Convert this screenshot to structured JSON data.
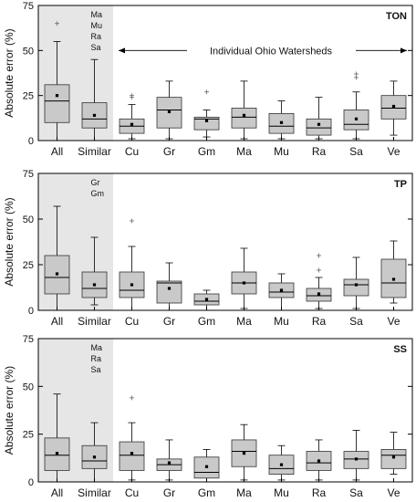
{
  "chart_data": [
    {
      "type": "box",
      "tag": "TON",
      "ylabel": "Absolute error (%)",
      "ylim": [
        0,
        75
      ],
      "yticks": [
        0,
        25,
        50,
        75
      ],
      "shaded_categories": [
        "All",
        "Similar"
      ],
      "similar_members": [
        "Ma",
        "Mu",
        "Ra",
        "Sa"
      ],
      "annotation": "Individual Ohio Watersheds",
      "categories": [
        "All",
        "Similar",
        "Cu",
        "Gr",
        "Gm",
        "Ma",
        "Mu",
        "Ra",
        "Sa",
        "Ve"
      ],
      "boxes": [
        {
          "min": 0,
          "q1": 10,
          "median": 22,
          "q3": 31,
          "max": 55,
          "mean": 25,
          "outliers": [
            65
          ]
        },
        {
          "min": 0,
          "q1": 7,
          "median": 12,
          "q3": 21,
          "max": 45,
          "mean": 14,
          "outliers": []
        },
        {
          "min": 1,
          "q1": 4,
          "median": 8,
          "q3": 12,
          "max": 20,
          "mean": 9,
          "outliers": [
            24,
            25
          ]
        },
        {
          "min": 1,
          "q1": 7,
          "median": 17,
          "q3": 24,
          "max": 33,
          "mean": 16,
          "outliers": []
        },
        {
          "min": 2,
          "q1": 6,
          "median": 12,
          "q3": 13,
          "max": 17,
          "mean": 11,
          "outliers": [
            27
          ]
        },
        {
          "min": 1,
          "q1": 7,
          "median": 13,
          "q3": 18,
          "max": 33,
          "mean": 14,
          "outliers": []
        },
        {
          "min": 1,
          "q1": 4,
          "median": 8,
          "q3": 15,
          "max": 22,
          "mean": 10,
          "outliers": []
        },
        {
          "min": 1,
          "q1": 3,
          "median": 7,
          "q3": 12,
          "max": 24,
          "mean": 9,
          "outliers": []
        },
        {
          "min": 1,
          "q1": 6,
          "median": 9,
          "q3": 17,
          "max": 27,
          "mean": 12,
          "outliers": [
            35,
            37
          ]
        },
        {
          "min": 3,
          "q1": 12,
          "median": 18,
          "q3": 25,
          "max": 33,
          "mean": 19,
          "outliers": []
        }
      ]
    },
    {
      "type": "box",
      "tag": "TP",
      "ylabel": "Absolute error (%)",
      "ylim": [
        0,
        75
      ],
      "yticks": [
        0,
        25,
        50,
        75
      ],
      "shaded_categories": [
        "All",
        "Similar"
      ],
      "similar_members": [
        "Gr",
        "Gm"
      ],
      "annotation": "",
      "categories": [
        "All",
        "Similar",
        "Cu",
        "Gr",
        "Gm",
        "Ma",
        "Mu",
        "Ra",
        "Sa",
        "Ve"
      ],
      "boxes": [
        {
          "min": 0,
          "q1": 9,
          "median": 18,
          "q3": 30,
          "max": 57,
          "mean": 20,
          "outliers": []
        },
        {
          "min": 3,
          "q1": 7,
          "median": 12,
          "q3": 21,
          "max": 40,
          "mean": 14,
          "outliers": []
        },
        {
          "min": 0,
          "q1": 7,
          "median": 11,
          "q3": 21,
          "max": 35,
          "mean": 14,
          "outliers": [
            49
          ]
        },
        {
          "min": 0,
          "q1": 4,
          "median": 15,
          "q3": 16,
          "max": 26,
          "mean": 12,
          "outliers": []
        },
        {
          "min": 0,
          "q1": 3,
          "median": 5,
          "q3": 9,
          "max": 11,
          "mean": 6,
          "outliers": []
        },
        {
          "min": 1,
          "q1": 9,
          "median": 15,
          "q3": 21,
          "max": 34,
          "mean": 15,
          "outliers": []
        },
        {
          "min": 0,
          "q1": 7,
          "median": 10,
          "q3": 15,
          "max": 20,
          "mean": 11,
          "outliers": []
        },
        {
          "min": 1,
          "q1": 5,
          "median": 8,
          "q3": 12,
          "max": 18,
          "mean": 9,
          "outliers": [
            22,
            30
          ]
        },
        {
          "min": 1,
          "q1": 8,
          "median": 14,
          "q3": 17,
          "max": 29,
          "mean": 14,
          "outliers": []
        },
        {
          "min": 4,
          "q1": 7,
          "median": 15,
          "q3": 28,
          "max": 38,
          "mean": 17,
          "outliers": []
        }
      ]
    },
    {
      "type": "box",
      "tag": "SS",
      "ylabel": "Absolute error (%)",
      "ylim": [
        0,
        75
      ],
      "yticks": [
        0,
        25,
        50,
        75
      ],
      "shaded_categories": [
        "All",
        "Similar"
      ],
      "similar_members": [
        "Ma",
        "Ra",
        "Sa"
      ],
      "annotation": "",
      "categories": [
        "All",
        "Similar",
        "Cu",
        "Gr",
        "Gm",
        "Ma",
        "Mu",
        "Ra",
        "Sa",
        "Ve"
      ],
      "boxes": [
        {
          "min": 0,
          "q1": 6,
          "median": 14,
          "q3": 23,
          "max": 46,
          "mean": 15,
          "outliers": []
        },
        {
          "min": 0,
          "q1": 7,
          "median": 11,
          "q3": 19,
          "max": 31,
          "mean": 13,
          "outliers": []
        },
        {
          "min": 1,
          "q1": 6,
          "median": 14,
          "q3": 21,
          "max": 31,
          "mean": 15,
          "outliers": [
            44
          ]
        },
        {
          "min": 1,
          "q1": 6,
          "median": 9,
          "q3": 12,
          "max": 22,
          "mean": 10,
          "outliers": []
        },
        {
          "min": 0,
          "q1": 2,
          "median": 5,
          "q3": 13,
          "max": 17,
          "mean": 8,
          "outliers": []
        },
        {
          "min": 1,
          "q1": 8,
          "median": 16,
          "q3": 22,
          "max": 30,
          "mean": 15,
          "outliers": []
        },
        {
          "min": 1,
          "q1": 4,
          "median": 7,
          "q3": 14,
          "max": 19,
          "mean": 9,
          "outliers": []
        },
        {
          "min": 1,
          "q1": 6,
          "median": 10,
          "q3": 16,
          "max": 22,
          "mean": 11,
          "outliers": []
        },
        {
          "min": 1,
          "q1": 7,
          "median": 12,
          "q3": 16,
          "max": 27,
          "mean": 12,
          "outliers": []
        },
        {
          "min": 4,
          "q1": 7,
          "median": 14,
          "q3": 17,
          "max": 26,
          "mean": 13,
          "outliers": []
        }
      ]
    }
  ]
}
